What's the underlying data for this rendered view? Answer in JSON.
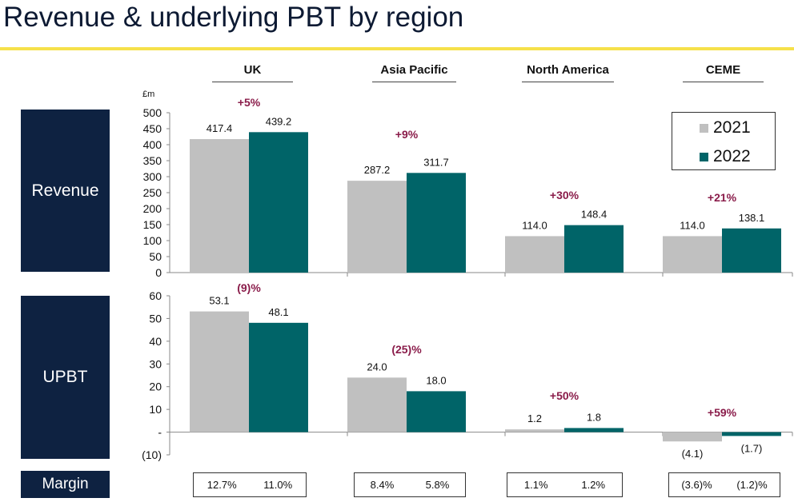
{
  "title": "Revenue & underlying PBT by region",
  "row_labels": {
    "revenue": "Revenue",
    "upbt": "UPBT",
    "margin": "Margin"
  },
  "colors": {
    "y2021": "#c0c0c0",
    "y2022": "#006468",
    "change": "#8a1c4a",
    "title_rule": "#f6e14a",
    "label_bg": "#0e2241"
  },
  "legend": {
    "items": [
      "2021",
      "2022"
    ],
    "placement": "top-right"
  },
  "regions": [
    "UK",
    "Asia Pacific",
    "North America",
    "CEME"
  ],
  "margins": [
    {
      "v2021": "12.7%",
      "v2022": "11.0%"
    },
    {
      "v2021": "8.4%",
      "v2022": "5.8%"
    },
    {
      "v2021": "1.1%",
      "v2022": "1.2%"
    },
    {
      "v2021": "(3.6)%",
      "v2022": "(1.2)%"
    }
  ],
  "chart_data": [
    {
      "type": "bar",
      "name": "Revenue",
      "unit_label": "£m",
      "categories": [
        "UK",
        "Asia Pacific",
        "North America",
        "CEME"
      ],
      "ylim": [
        0,
        500
      ],
      "yticks": [
        0,
        50,
        100,
        150,
        200,
        250,
        300,
        350,
        400,
        450,
        500
      ],
      "ytick_labels": [
        "0",
        "50",
        "100",
        "150",
        "200",
        "250",
        "300",
        "350",
        "400",
        "450",
        "500"
      ],
      "series": [
        {
          "name": "2021",
          "values": [
            417.4,
            287.2,
            114.0,
            114.0
          ],
          "labels": [
            "417.4",
            "287.2",
            "114.0",
            "114.0"
          ]
        },
        {
          "name": "2022",
          "values": [
            439.2,
            311.7,
            148.4,
            138.1
          ],
          "labels": [
            "439.2",
            "311.7",
            "148.4",
            "138.1"
          ]
        }
      ],
      "changes": [
        "+5%",
        "+9%",
        "+30%",
        "+21%"
      ]
    },
    {
      "type": "bar",
      "name": "UPBT",
      "categories": [
        "UK",
        "Asia Pacific",
        "North America",
        "CEME"
      ],
      "ylim": [
        -10,
        60
      ],
      "yticks": [
        -10,
        0,
        10,
        20,
        30,
        40,
        50,
        60
      ],
      "ytick_labels": [
        "(10)",
        "-",
        "10",
        "20",
        "30",
        "40",
        "50",
        "60"
      ],
      "series": [
        {
          "name": "2021",
          "values": [
            53.1,
            24.0,
            1.2,
            -4.1
          ],
          "labels": [
            "53.1",
            "24.0",
            "1.2",
            "(4.1)"
          ]
        },
        {
          "name": "2022",
          "values": [
            48.1,
            18.0,
            1.8,
            -1.7
          ],
          "labels": [
            "48.1",
            "18.0",
            "1.8",
            "(1.7)"
          ]
        }
      ],
      "changes": [
        "(9)%",
        "(25)%",
        "+50%",
        "+59%"
      ]
    }
  ]
}
